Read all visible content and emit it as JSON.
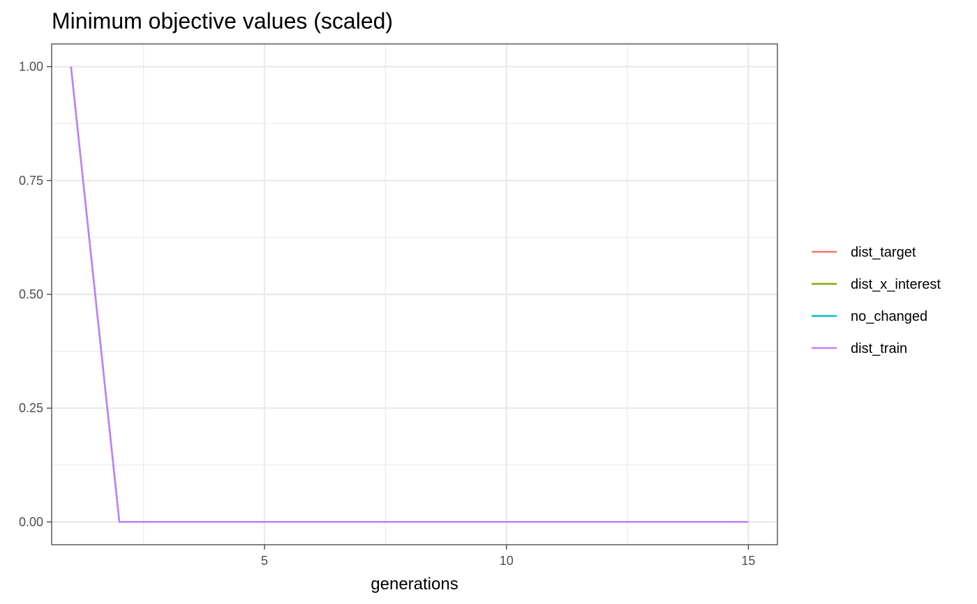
{
  "chart_data": {
    "type": "line",
    "title": "Minimum objective values (scaled)",
    "xlabel": "generations",
    "ylabel": "",
    "xlim": [
      0.6,
      15.6
    ],
    "ylim": [
      -0.05,
      1.05
    ],
    "x_ticks": [
      5,
      10,
      15
    ],
    "x_tick_labels": [
      "5",
      "10",
      "15"
    ],
    "y_ticks": [
      0,
      0.25,
      0.5,
      0.75,
      1
    ],
    "y_tick_labels": [
      "0.00",
      "0.25",
      "0.50",
      "0.75",
      "1.00"
    ],
    "x_minor_ticks": [
      2.5,
      7.5,
      12.5
    ],
    "y_minor_ticks": [
      0.125,
      0.375,
      0.625,
      0.875
    ],
    "grid": true,
    "legend_position": "right",
    "x": [
      1,
      2,
      3,
      4,
      5,
      6,
      7,
      8,
      9,
      10,
      11,
      12,
      13,
      14,
      15
    ],
    "series": [
      {
        "name": "dist_target",
        "color": "#F8766D",
        "values": [
          1,
          0,
          0,
          0,
          0,
          0,
          0,
          0,
          0,
          0,
          0,
          0,
          0,
          0,
          0
        ]
      },
      {
        "name": "dist_x_interest",
        "color": "#7CAE00",
        "values": [
          1,
          0,
          0,
          0,
          0,
          0,
          0,
          0,
          0,
          0,
          0,
          0,
          0,
          0,
          0
        ]
      },
      {
        "name": "no_changed",
        "color": "#00BFC4",
        "values": [
          1,
          0,
          0,
          0,
          0,
          0,
          0,
          0,
          0,
          0,
          0,
          0,
          0,
          0,
          0
        ]
      },
      {
        "name": "dist_train",
        "color": "#C77CFF",
        "values": [
          1,
          0,
          0,
          0,
          0,
          0,
          0,
          0,
          0,
          0,
          0,
          0,
          0,
          0,
          0
        ]
      }
    ]
  }
}
